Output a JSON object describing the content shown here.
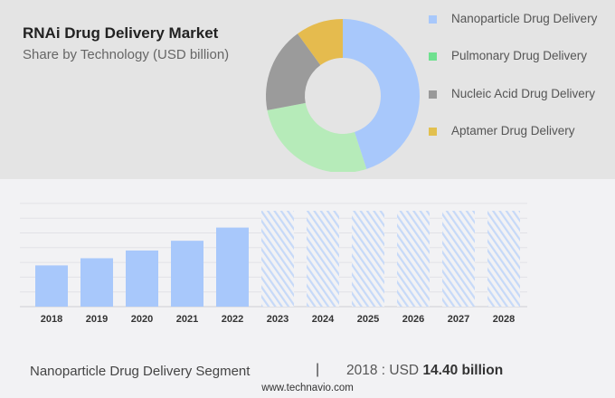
{
  "header": {
    "title": "RNAi Drug Delivery Market",
    "subtitle": "Share by Technology (USD billion)"
  },
  "chart_data": [
    {
      "type": "pie",
      "variant": "donut",
      "legend_position": "right",
      "series": [
        {
          "name": "Nanoparticle Drug Delivery",
          "share_pct": 45,
          "color": "#a8c8fb"
        },
        {
          "name": "Pulmonary Drug Delivery",
          "share_pct": 27,
          "color": "#b6ebb9"
        },
        {
          "name": "Nucleic Acid Drug Delivery",
          "share_pct": 18,
          "color": "#9b9b9b"
        },
        {
          "name": "Aptamer Drug Delivery",
          "share_pct": 10,
          "color": "#e5bb4e"
        }
      ],
      "legend_swatch_colors": [
        "#a8c8fb",
        "#6fe08f",
        "#999999",
        "#e2c04f"
      ]
    },
    {
      "type": "bar",
      "grid": true,
      "categories": [
        "2018",
        "2019",
        "2020",
        "2021",
        "2022",
        "2023",
        "2024",
        "2025",
        "2026",
        "2027",
        "2028"
      ],
      "values": [
        14.4,
        16.9,
        19.6,
        23.0,
        27.6,
        null,
        null,
        null,
        null,
        null,
        null
      ],
      "forecast_from": "2023",
      "ylim": [
        0,
        36
      ],
      "bar_color": "#a8c8fb",
      "forecast_style": "hatched"
    }
  ],
  "footer": {
    "segment": "Nanoparticle Drug Delivery Segment",
    "separator": "|",
    "year_label": "2018 : USD ",
    "value": "14.40 billion",
    "site": "www.technavio.com"
  }
}
